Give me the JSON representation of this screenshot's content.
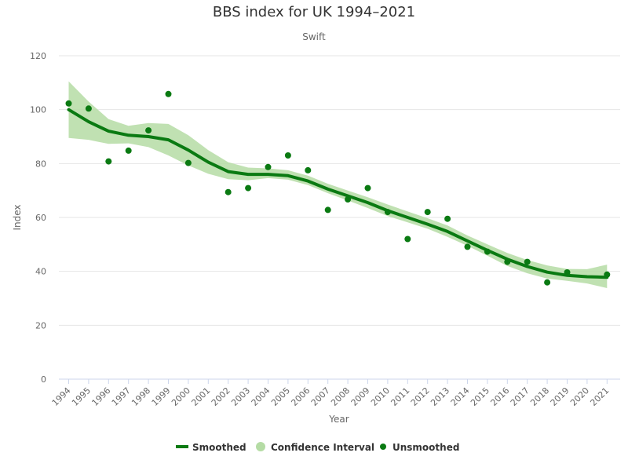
{
  "chart_data": {
    "type": "line",
    "title": "BBS index for UK 1994–2021",
    "subtitle": "Swift",
    "xlabel": "Year",
    "ylabel": "Index",
    "ylim": [
      0,
      120
    ],
    "yticks": [
      0,
      20,
      40,
      60,
      80,
      100,
      120
    ],
    "categories": [
      "1994",
      "1995",
      "1996",
      "1997",
      "1998",
      "1999",
      "2000",
      "2001",
      "2002",
      "2003",
      "2004",
      "2005",
      "2006",
      "2007",
      "2008",
      "2009",
      "2010",
      "2011",
      "2012",
      "2013",
      "2014",
      "2015",
      "2016",
      "2017",
      "2018",
      "2019",
      "2020",
      "2021"
    ],
    "grid": true,
    "legend_position": "bottom-center",
    "series": [
      {
        "name": "Smoothed",
        "kind": "line",
        "color": "#0a7a12",
        "values": [
          100,
          95.5,
          92,
          90.5,
          90,
          88.8,
          85,
          80.5,
          77,
          76,
          76,
          75.5,
          73.5,
          70.5,
          68,
          65.5,
          62.5,
          60,
          57.5,
          54.8,
          51.3,
          47.8,
          44.5,
          41.8,
          39.7,
          38.5,
          38,
          37.8
        ]
      },
      {
        "name": "Confidence Interval",
        "kind": "range",
        "color": "#b5dca5",
        "low": [
          89.5,
          88.8,
          87.3,
          87.5,
          86.1,
          83.0,
          79.3,
          76.2,
          74.2,
          73.8,
          74.6,
          74.0,
          72.0,
          69.0,
          66.3,
          63.5,
          60.5,
          58.2,
          55.8,
          52.8,
          49.5,
          45.8,
          42.0,
          39.3,
          37.3,
          36.5,
          35.5,
          33.8
        ],
        "high": [
          110.5,
          103.0,
          96.5,
          94.0,
          95.0,
          94.7,
          90.5,
          85.0,
          80.5,
          78.5,
          78.2,
          77.5,
          75.5,
          72.5,
          70.0,
          67.5,
          64.8,
          62.2,
          59.7,
          57.0,
          53.3,
          50.0,
          46.8,
          44.2,
          42.2,
          40.9,
          40.8,
          42.5
        ]
      },
      {
        "name": "Unsmoothed",
        "kind": "scatter",
        "color": "#0a7a12",
        "values": [
          102.3,
          100.4,
          80.8,
          84.8,
          92.3,
          105.8,
          80.2,
          null,
          69.4,
          70.9,
          78.7,
          83.0,
          77.5,
          62.8,
          66.7,
          70.9,
          62.0,
          52.0,
          62.0,
          59.5,
          49.1,
          47.3,
          43.5,
          43.5,
          35.9,
          39.6,
          null,
          38.8
        ]
      }
    ]
  },
  "colors": {
    "smoothed": "#0a7a12",
    "ci": "#b5dca5",
    "unsmoothed": "#0a7a12",
    "grid": "#e6e6e6",
    "axis": "#ccd6eb"
  }
}
